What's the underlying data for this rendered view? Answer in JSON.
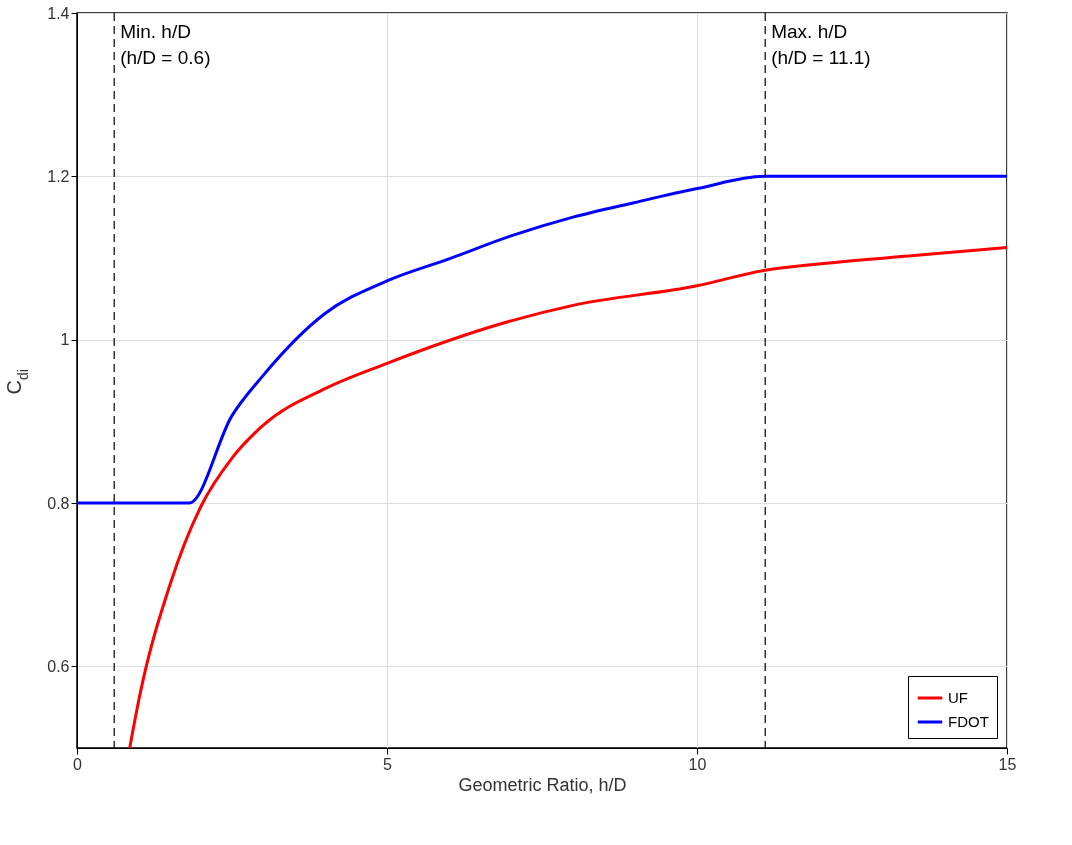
{
  "chart_data": {
    "type": "line",
    "xlabel": "Geometric Ratio, h/D",
    "ylabel": "C$_{di}$",
    "xlim": [
      0,
      15
    ],
    "ylim": [
      0.5,
      1.4
    ],
    "xticks": [
      0,
      5,
      10,
      15
    ],
    "yticks": [
      0.6,
      0.8,
      1,
      1.2,
      1.4
    ],
    "grid": true,
    "legend": "bottom right",
    "line_style": "solid",
    "marker": "none",
    "series": [
      {
        "name": "UF",
        "color": "#ff0000",
        "x": [
          0.85,
          1,
          1.5,
          2,
          2.5,
          3,
          4,
          5,
          6,
          7,
          8,
          10,
          11.1,
          12,
          13.5,
          15
        ],
        "values": [
          0.5,
          0.56,
          0.7,
          0.796,
          0.855,
          0.895,
          0.94,
          0.971,
          0.999,
          1.023,
          1.042,
          1.066,
          1.085,
          1.093,
          1.103,
          1.113
        ]
      },
      {
        "name": "FDOT",
        "color": "#0000ff",
        "x": [
          0,
          1.81,
          2.5,
          3,
          4,
          5,
          6,
          7,
          8,
          9,
          10,
          11.1,
          15
        ],
        "values": [
          0.8,
          0.8,
          0.907,
          0.956,
          1.032,
          1.072,
          1.099,
          1.127,
          1.15,
          1.168,
          1.185,
          1.2,
          1.2
        ]
      }
    ],
    "ref_lines": [
      {
        "axis": "x",
        "value": 0.6,
        "label": "Min. h/D\n(h/D = 0.6)",
        "color": "#000000",
        "line_style": "dashed"
      },
      {
        "axis": "x",
        "value": 11.1,
        "label": "Max. h/D\n(h/D = 11.1)",
        "color": "#000000",
        "line_style": "dashed"
      }
    ]
  }
}
